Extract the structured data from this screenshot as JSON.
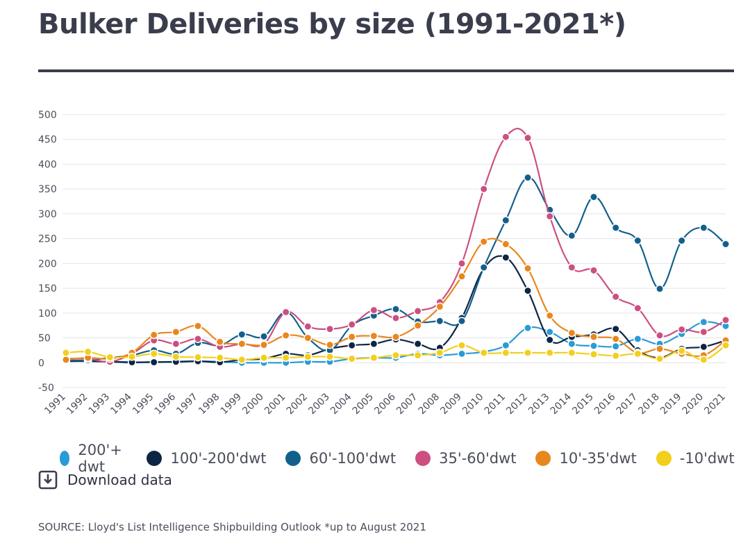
{
  "title": "Bulker Deliveries by size (1991-2021*)",
  "download_label": "Download data",
  "source": "SOURCE: Lloyd's List Intelligence Shipbuilding Outlook *up to August 2021",
  "chart_data": {
    "type": "line",
    "title": "Bulker Deliveries by size (1991-2021*)",
    "xlabel": "",
    "ylabel": "",
    "ylim": [
      -50,
      500
    ],
    "yticks": [
      500,
      450,
      400,
      350,
      300,
      250,
      200,
      150,
      100,
      50,
      0,
      -50
    ],
    "grid": true,
    "legend_position": "bottom",
    "categories": [
      "1991",
      "1992",
      "1993",
      "1994",
      "1995",
      "1996",
      "1997",
      "1998",
      "1999",
      "2000",
      "2001",
      "2002",
      "2003",
      "2004",
      "2005",
      "2006",
      "2007",
      "2008",
      "2009",
      "2010",
      "2011",
      "2012",
      "2013",
      "2014",
      "2015",
      "2016",
      "2017",
      "2018",
      "2019",
      "2020",
      "2021"
    ],
    "series": [
      {
        "name": "200'+ dwt",
        "color": "#2a9bd6",
        "values": [
          5,
          3,
          2,
          0,
          2,
          1,
          3,
          2,
          0,
          0,
          0,
          2,
          2,
          8,
          10,
          10,
          18,
          15,
          18,
          22,
          35,
          70,
          62,
          38,
          34,
          33,
          48,
          38,
          58,
          82,
          74
        ]
      },
      {
        "name": "100'-200'dwt",
        "color": "#0d2545",
        "values": [
          3,
          3,
          2,
          1,
          1,
          2,
          3,
          1,
          6,
          8,
          18,
          15,
          28,
          35,
          38,
          47,
          38,
          30,
          90,
          190,
          212,
          145,
          46,
          52,
          57,
          68,
          25,
          10,
          28,
          32,
          45
        ]
      },
      {
        "name": "60'-100'dwt",
        "color": "#135f8c",
        "values": [
          5,
          5,
          10,
          15,
          25,
          18,
          40,
          35,
          57,
          53,
          102,
          50,
          25,
          75,
          95,
          108,
          83,
          84,
          84,
          192,
          287,
          373,
          308,
          256,
          334,
          272,
          246,
          149,
          246,
          272,
          239
        ]
      },
      {
        "name": "35'-60'dwt",
        "color": "#cc4f82",
        "values": [
          8,
          8,
          2,
          18,
          45,
          38,
          48,
          32,
          38,
          38,
          102,
          73,
          68,
          77,
          106,
          90,
          104,
          122,
          200,
          350,
          455,
          453,
          295,
          192,
          186,
          133,
          110,
          55,
          67,
          62,
          86
        ]
      },
      {
        "name": "10'-35'dwt",
        "color": "#e8871e",
        "values": [
          6,
          10,
          8,
          20,
          56,
          62,
          74,
          42,
          38,
          36,
          55,
          50,
          36,
          52,
          54,
          52,
          75,
          113,
          174,
          244,
          239,
          190,
          95,
          60,
          52,
          48,
          20,
          28,
          18,
          15,
          45
        ]
      },
      {
        "name": "-10'dwt",
        "color": "#f2cf1d",
        "values": [
          20,
          22,
          11,
          12,
          18,
          12,
          11,
          10,
          6,
          10,
          10,
          12,
          12,
          8,
          10,
          15,
          15,
          20,
          35,
          20,
          20,
          20,
          20,
          20,
          17,
          14,
          18,
          8,
          24,
          6,
          35
        ]
      }
    ]
  }
}
